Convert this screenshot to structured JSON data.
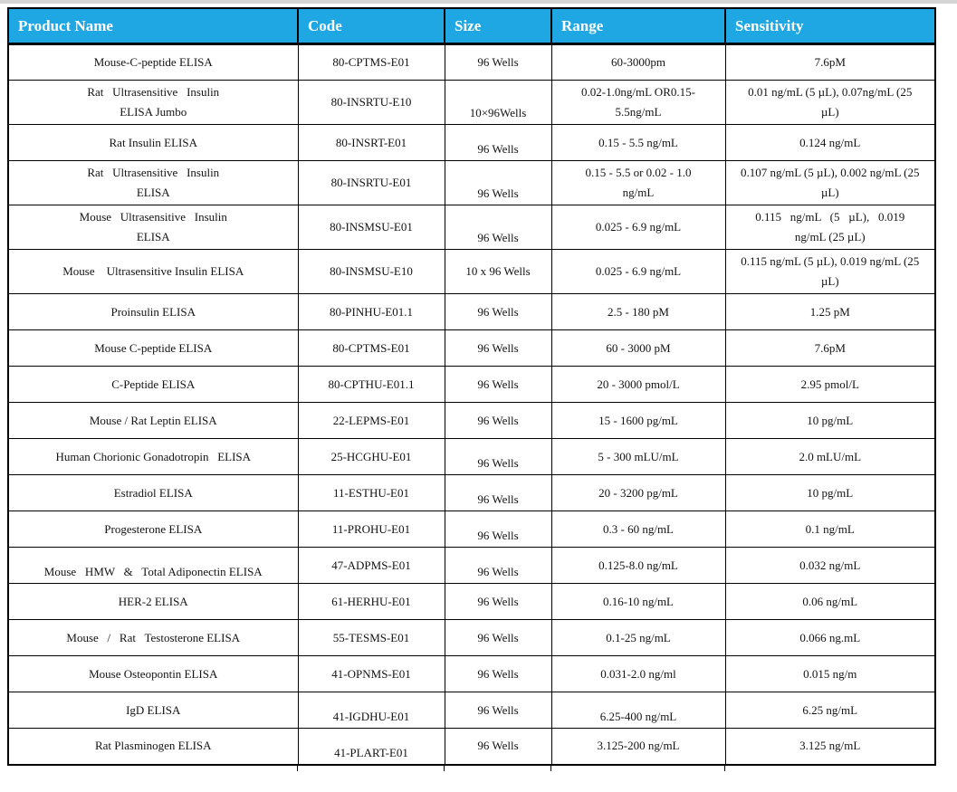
{
  "page": {
    "background_color": "#ffffff",
    "top_strip_color": "#d4d4d4"
  },
  "table": {
    "header_bg_color": "#1fa7e4",
    "header_text_color": "#ffffff",
    "border_color": "#000000",
    "columns": [
      {
        "key": "name",
        "label": "Product Name"
      },
      {
        "key": "code",
        "label": "Code"
      },
      {
        "key": "size",
        "label": "Size"
      },
      {
        "key": "range",
        "label": "Range"
      },
      {
        "key": "sensitivity",
        "label": "Sensitivity"
      }
    ],
    "rows": [
      {
        "name": "Mouse-C-peptide ELISA",
        "code": "80-CPTMS-E01",
        "size": "96 Wells",
        "range": "60-3000pm",
        "sensitivity": "7.6pM"
      },
      {
        "name": "Rat   Ultrasensitive   Insulin\nELISA Jumbo",
        "code": "80-INSRTU-E10",
        "size": "10×96Wells",
        "range": "0.02-1.0ng/mL OR0.15-\n5.5ng/mL",
        "sensitivity": "0.01 ng/mL (5 µL), 0.07ng/mL (25\nµL)",
        "bottom_aligned": [
          "size"
        ]
      },
      {
        "name": "Rat Insulin ELISA",
        "code": "80-INSRT-E01",
        "size": "96 Wells",
        "range": "0.15 - 5.5 ng/mL",
        "sensitivity": "0.124 ng/mL",
        "bottom_aligned": [
          "size"
        ]
      },
      {
        "name": "Rat   Ultrasensitive   Insulin\nELISA",
        "code": "80-INSRTU-E01",
        "size": "96 Wells",
        "range": "0.15 - 5.5 or 0.02 - 1.0\nng/mL",
        "sensitivity": "0.107 ng/mL (5 µL), 0.002 ng/mL (25\nµL)",
        "bottom_aligned": [
          "size"
        ]
      },
      {
        "name": "Mouse   Ultrasensitive   Insulin\nELISA",
        "code": "80-INSMSU-E01",
        "size": "96 Wells",
        "range": "0.025 - 6.9 ng/mL",
        "sensitivity": "0.115   ng/mL   (5   µL),   0.019\nng/mL (25 µL)",
        "bottom_aligned": [
          "size"
        ]
      },
      {
        "name": "Mouse    Ultrasensitive Insulin ELISA",
        "code": "80-INSMSU-E10",
        "size": "10 x 96 Wells",
        "range": "0.025 - 6.9 ng/mL",
        "sensitivity": "0.115 ng/mL (5 µL), 0.019 ng/mL (25\nµL)"
      },
      {
        "name": "Proinsulin ELISA",
        "code": "80-PINHU-E01.1",
        "size": "96 Wells",
        "range": "2.5 - 180 pM",
        "sensitivity": "1.25 pM"
      },
      {
        "name": "Mouse C-peptide ELISA",
        "code": "80-CPTMS-E01",
        "size": "96 Wells",
        "range": "60 - 3000 pM",
        "sensitivity": "7.6pM"
      },
      {
        "name": "C-Peptide ELISA",
        "code": "80-CPTHU-E01.1",
        "size": "96 Wells",
        "range": "20 - 3000 pmol/L",
        "sensitivity": "2.95 pmol/L"
      },
      {
        "name": "Mouse / Rat Leptin ELISA",
        "code": "22-LEPMS-E01",
        "size": "96 Wells",
        "range": "15 - 1600 pg/mL",
        "sensitivity": "10 pg/mL"
      },
      {
        "name": "Human Chorionic Gonadotropin   ELISA",
        "code": "25-HCGHU-E01",
        "size": "96 Wells",
        "range": "5 - 300 mLU/mL",
        "sensitivity": "2.0 mLU/mL",
        "bottom_aligned": [
          "size"
        ]
      },
      {
        "name": "Estradiol ELISA",
        "code": "11-ESTHU-E01",
        "size": "96 Wells",
        "range": "20 - 3200 pg/mL",
        "sensitivity": "10 pg/mL",
        "bottom_aligned": [
          "size"
        ]
      },
      {
        "name": "Progesterone ELISA",
        "code": "11-PROHU-E01",
        "size": "96 Wells",
        "range": "0.3 - 60 ng/mL",
        "sensitivity": "0.1 ng/mL",
        "bottom_aligned": [
          "size"
        ]
      },
      {
        "name": "Mouse   HMW   &   Total Adiponectin ELISA",
        "code": "47-ADPMS-E01",
        "size": "96 Wells",
        "range": "0.125-8.0 ng/mL",
        "sensitivity": "0.032 ng/mL",
        "bottom_aligned": [
          "name",
          "size"
        ]
      },
      {
        "name": "HER-2 ELISA",
        "code": "61-HERHU-E01",
        "size": "96 Wells",
        "range": "0.16-10 ng/mL",
        "sensitivity": "0.06 ng/mL"
      },
      {
        "name": "Mouse   /   Rat   Testosterone ELISA",
        "code": "55-TESMS-E01",
        "size": "96 Wells",
        "range": "0.1-25 ng/mL",
        "sensitivity": "0.066 ng.mL"
      },
      {
        "name": "Mouse Osteopontin ELISA",
        "code": "41-OPNMS-E01",
        "size": "96 Wells",
        "range": "0.031-2.0 ng/ml",
        "sensitivity": "0.015 ng/m"
      },
      {
        "name": "IgD ELISA",
        "code": "41-IGDHU-E01",
        "size": "96 Wells",
        "range": "6.25-400 ng/mL",
        "sensitivity": "6.25 ng/mL",
        "bottom_aligned": [
          "code",
          "range"
        ]
      },
      {
        "name": "Rat Plasminogen ELISA",
        "code": "41-PLART-E01",
        "size": "96 Wells",
        "range": "3.125-200 ng/mL",
        "sensitivity": "3.125 ng/mL",
        "bottom_aligned": [
          "code"
        ]
      }
    ]
  }
}
